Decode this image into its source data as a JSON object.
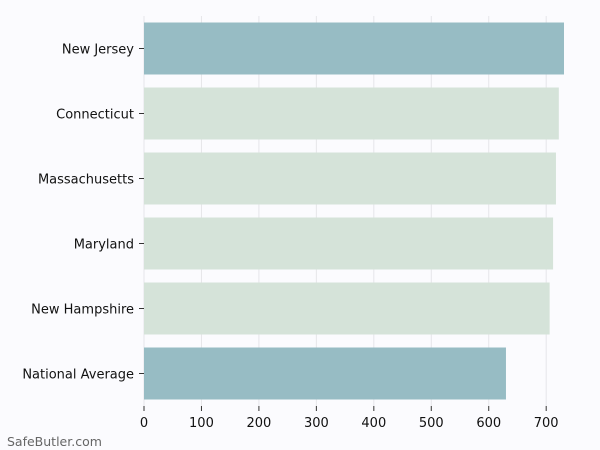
{
  "chart_data": {
    "type": "bar",
    "orientation": "horizontal",
    "categories": [
      "New Jersey",
      "Connecticut",
      "Massachusetts",
      "Maryland",
      "New Hampshire",
      "National Average"
    ],
    "values": [
      731,
      722,
      717,
      712,
      706,
      630
    ],
    "colors": [
      "#97bcc4",
      "#d5e3d9",
      "#d5e3d9",
      "#d5e3d9",
      "#d5e3d9",
      "#97bcc4"
    ],
    "xlim": [
      0,
      731
    ],
    "xticks": [
      0,
      100,
      200,
      300,
      400,
      500,
      600,
      700
    ],
    "grid": true,
    "title": "",
    "xlabel": "",
    "ylabel": ""
  },
  "watermark": "SafeButler.com"
}
